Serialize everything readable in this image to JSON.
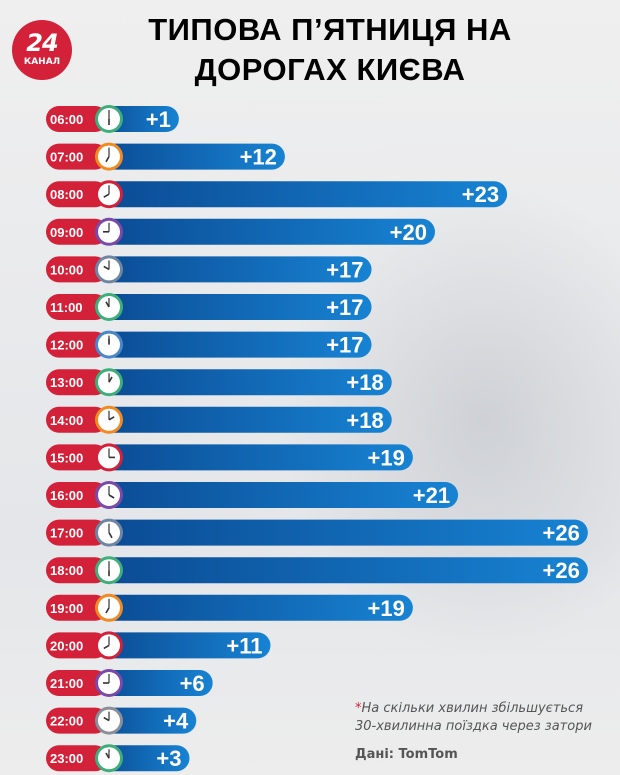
{
  "logo": {
    "number": "24",
    "word": "КАНАЛ"
  },
  "title_line1": "ТИПОВА П’ЯТНИЦЯ НА",
  "title_line2": "ДОРОГАХ КИЄВА",
  "footnote_marker": "*",
  "footnote": "На скільки хвилин збільшується",
  "footnote_line2": "30-хвилинна поїздка через затори",
  "source": "Дані: TomTom",
  "colors": {
    "red": "#d3213a",
    "blue_dark": "#0b4a93",
    "blue_light": "#1783d3"
  },
  "chart_data": {
    "type": "bar",
    "orientation": "horizontal",
    "title": "ТИПОВА П’ЯТНИЦЯ НА ДОРОГАХ КИЄВА",
    "categories": [
      "06:00",
      "07:00",
      "08:00",
      "09:00",
      "10:00",
      "11:00",
      "12:00",
      "13:00",
      "14:00",
      "15:00",
      "16:00",
      "17:00",
      "18:00",
      "19:00",
      "20:00",
      "21:00",
      "22:00",
      "23:00"
    ],
    "values": [
      1,
      12,
      23,
      20,
      17,
      17,
      17,
      18,
      18,
      19,
      21,
      26,
      26,
      19,
      11,
      6,
      4,
      3
    ],
    "labels": [
      "+1",
      "+12",
      "+23",
      "+20",
      "+17",
      "+17",
      "+17",
      "+18",
      "+18",
      "+19",
      "+21",
      "+26",
      "+26",
      "+19",
      "+11",
      "+6",
      "+4",
      "+3"
    ],
    "clock_colors": [
      "#3fae7a",
      "#f08a24",
      "#d3213a",
      "#7b4aa8",
      "#6f86a3",
      "#3fae7a",
      "#4a86c8",
      "#3fae7a",
      "#f08a24",
      "#d3213a",
      "#7b4aa8",
      "#6f86a3",
      "#3fae7a",
      "#f08a24",
      "#d3213a",
      "#7b4aa8",
      "#8a8f99",
      "#3fae7a"
    ],
    "unit": "minutes"
  }
}
